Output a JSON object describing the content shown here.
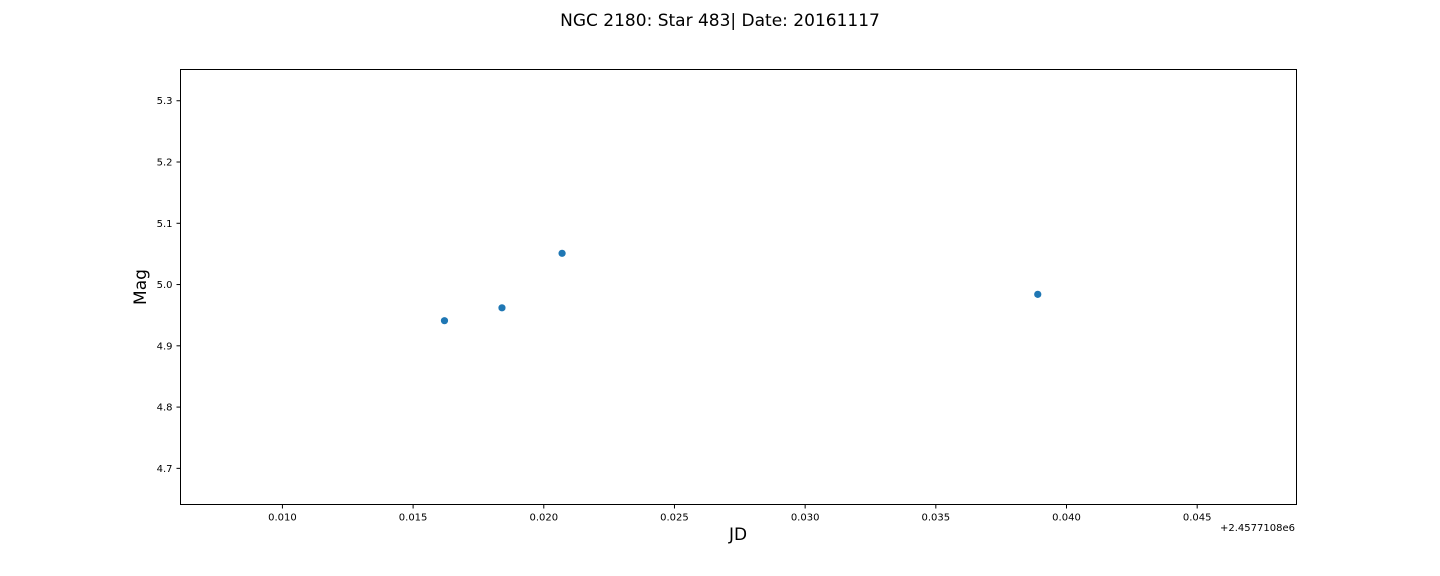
{
  "chart_data": {
    "type": "scatter",
    "title": "NGC 2180: Star 483| Date: 20161117",
    "xlabel": "JD",
    "ylabel": "Mag",
    "x_offset_label": "+2.4577108e6",
    "x_offset": 2457710.8,
    "xlim": [
      0.0061,
      0.0488
    ],
    "ylim": [
      4.641,
      5.351
    ],
    "x_ticks": [
      0.01,
      0.015,
      0.02,
      0.025,
      0.03,
      0.035,
      0.04,
      0.045
    ],
    "x_tick_labels": [
      "0.010",
      "0.015",
      "0.020",
      "0.025",
      "0.030",
      "0.035",
      "0.040",
      "0.045"
    ],
    "y_ticks": [
      4.7,
      4.8,
      4.9,
      5.0,
      5.1,
      5.2,
      5.3
    ],
    "y_tick_labels": [
      "4.7",
      "4.8",
      "4.9",
      "5.0",
      "5.1",
      "5.2",
      "5.3"
    ],
    "grid": false,
    "series": [
      {
        "color": "#1f77b4",
        "x": [
          0.0162,
          0.0184,
          0.0207,
          0.0389
        ],
        "y": [
          4.941,
          4.962,
          5.051,
          4.984
        ]
      }
    ]
  }
}
